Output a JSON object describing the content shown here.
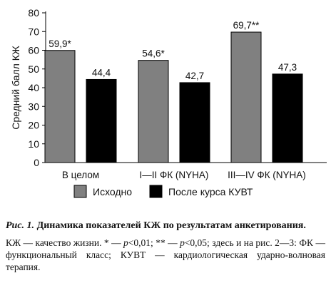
{
  "chart_data": {
    "type": "bar",
    "ylabel": "Средний балл КЖ",
    "xlabel": "",
    "ylim": [
      0,
      80
    ],
    "yticks": [
      0,
      10,
      20,
      30,
      40,
      50,
      60,
      70,
      80
    ],
    "categories": [
      "В целом",
      "I—II ФК (NYHA)",
      "III—IV ФК (NYHA)"
    ],
    "series": [
      {
        "name": "Исходно",
        "color": "#808080",
        "values": [
          59.9,
          54.6,
          69.7
        ],
        "labels": [
          "59,9*",
          "54,6*",
          "69,7**"
        ]
      },
      {
        "name": "После курса КУВТ",
        "color": "#000000",
        "values": [
          44.4,
          42.7,
          47.3
        ],
        "labels": [
          "44,4",
          "42,7",
          "47,3"
        ]
      }
    ],
    "grid": false,
    "legend_position": "bottom"
  },
  "caption": {
    "fig_label": "Рис. 1.",
    "title": "Динамика показателей КЖ по результатам анкетирования.",
    "note_parts": [
      "КЖ — качество жизни. * — ",
      "p",
      "<0,01; ** — ",
      "p",
      "<0,05; здесь и на рис. 2—3: ФК — функциональный класс; КУВТ — кардиологическая ударно-волновая терапия."
    ]
  }
}
